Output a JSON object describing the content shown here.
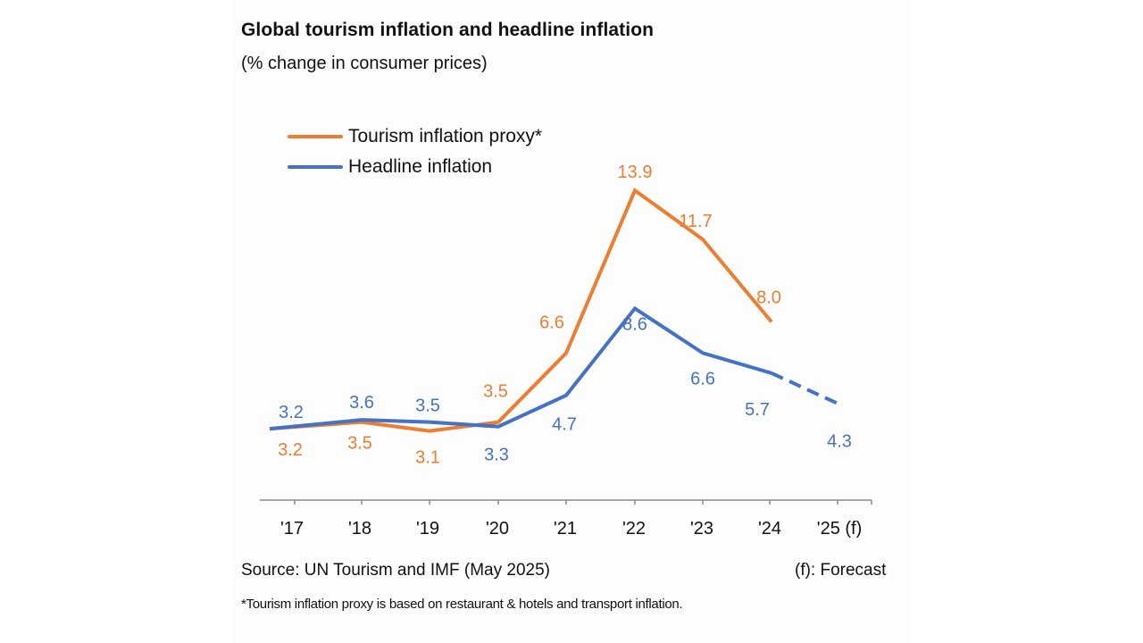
{
  "chart_data": {
    "type": "line",
    "title": "Global tourism inflation and headline inflation",
    "subtitle": "(% change in consumer prices)",
    "xlabel": "",
    "ylabel": "",
    "categories": [
      "'17",
      "'18",
      "'19",
      "'20",
      "'21",
      "'22",
      "'23",
      "'24",
      "'25 (f)"
    ],
    "ylim": [
      0,
      15
    ],
    "grid": false,
    "legend_position": "top-left",
    "series": [
      {
        "name": "Tourism inflation proxy*",
        "color": "#ED7D31",
        "values": [
          3.2,
          3.5,
          3.1,
          3.5,
          6.6,
          13.9,
          11.7,
          8.0,
          null
        ],
        "labels": [
          "3.2",
          "3.5",
          "3.1",
          "3.5",
          "6.6",
          "13.9",
          "11.7",
          "8.0",
          ""
        ]
      },
      {
        "name": "Headline inflation",
        "color": "#4472C4",
        "values": [
          3.2,
          3.6,
          3.5,
          3.3,
          4.7,
          8.6,
          6.6,
          5.7,
          4.3
        ],
        "labels": [
          "3.2",
          "3.6",
          "3.5",
          "3.3",
          "4.7",
          "8.6",
          "6.6",
          "5.7",
          "4.3"
        ],
        "forecast_from_index": 7
      }
    ],
    "source": "Source: UN Tourism and IMF (May 2025)",
    "forecast_note": "(f): Forecast",
    "footnote": "*Tourism inflation proxy is based on restaurant & hotels and transport inflation."
  }
}
